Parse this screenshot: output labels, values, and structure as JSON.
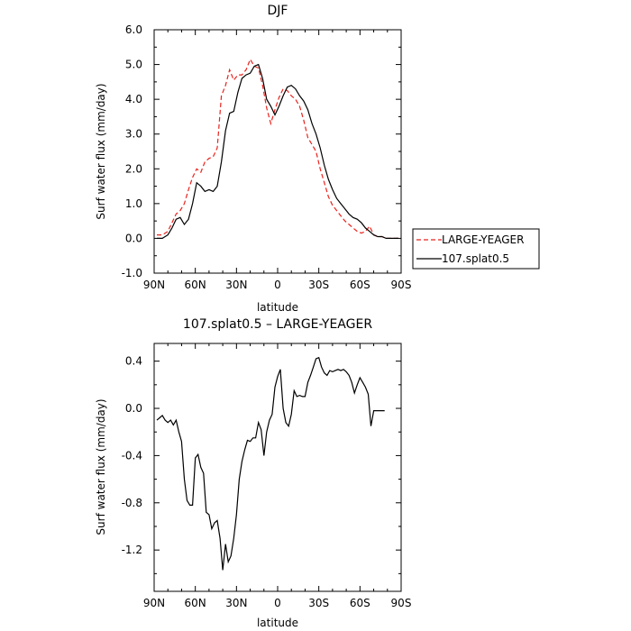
{
  "chart_data": [
    {
      "type": "line",
      "title": "DJF",
      "xlabel": "latitude",
      "ylabel": "Surf water flux (mm/day)",
      "xlim": [
        90,
        -90
      ],
      "ylim": [
        -1.0,
        6.0
      ],
      "x_ticks": [
        90,
        60,
        30,
        0,
        -30,
        -60,
        -90
      ],
      "x_tick_labels": [
        "90N",
        "60N",
        "30N",
        "0",
        "30S",
        "60S",
        "90S"
      ],
      "y_ticks": [
        -1.0,
        0.0,
        1.0,
        2.0,
        3.0,
        4.0,
        5.0,
        6.0
      ],
      "y_tick_labels": [
        "-1.0",
        "0.0",
        "1.0",
        "2.0",
        "3.0",
        "4.0",
        "5.0",
        "6.0"
      ],
      "legend": "right",
      "series": [
        {
          "name": "LARGE-YEAGER",
          "color": "#e8231d",
          "dash": "dashed",
          "x": [
            88,
            84,
            80,
            77,
            74,
            71,
            68,
            65,
            62,
            59,
            56,
            53,
            50,
            47,
            44,
            41,
            38,
            35,
            32,
            29,
            26,
            23,
            20,
            17,
            14,
            11,
            8,
            5,
            2,
            -1,
            -4,
            -7,
            -10,
            -13,
            -16,
            -19,
            -22,
            -25,
            -28,
            -31,
            -34,
            -37,
            -40,
            -43,
            -46,
            -49,
            -52,
            -55,
            -58,
            -61,
            -64,
            -67,
            -70,
            -73,
            -76,
            -79,
            -82,
            -85,
            -88
          ],
          "y": [
            0.1,
            0.1,
            0.2,
            0.45,
            0.7,
            0.8,
            1.0,
            1.4,
            1.75,
            2.0,
            1.9,
            2.2,
            2.3,
            2.35,
            2.6,
            4.1,
            4.4,
            4.85,
            4.55,
            4.7,
            4.7,
            4.85,
            5.15,
            4.95,
            4.9,
            4.4,
            3.75,
            3.3,
            3.7,
            4.05,
            4.3,
            4.25,
            4.1,
            4.0,
            3.8,
            3.4,
            2.9,
            2.7,
            2.5,
            2.0,
            1.6,
            1.2,
            0.95,
            0.8,
            0.65,
            0.5,
            0.4,
            0.3,
            0.2,
            0.15,
            0.2,
            0.35,
            0.1,
            0.05,
            0.05,
            0.0,
            0.0,
            0.0,
            0.0
          ]
        },
        {
          "name": "107.splat0.5",
          "color": "#000000",
          "dash": "solid",
          "x": [
            88,
            84,
            80,
            77,
            74,
            71,
            68,
            65,
            62,
            59,
            56,
            53,
            50,
            47,
            44,
            41,
            38,
            35,
            32,
            29,
            26,
            23,
            20,
            17,
            14,
            11,
            8,
            5,
            2,
            -1,
            -4,
            -7,
            -10,
            -13,
            -16,
            -19,
            -22,
            -25,
            -28,
            -31,
            -34,
            -37,
            -40,
            -43,
            -46,
            -49,
            -52,
            -55,
            -58,
            -61,
            -64,
            -67,
            -70,
            -73,
            -76,
            -79,
            -82,
            -85,
            -88
          ],
          "y": [
            0.0,
            0.0,
            0.1,
            0.3,
            0.55,
            0.6,
            0.4,
            0.55,
            1.0,
            1.6,
            1.5,
            1.35,
            1.4,
            1.35,
            1.5,
            2.2,
            3.1,
            3.6,
            3.65,
            4.2,
            4.6,
            4.7,
            4.75,
            4.95,
            5.0,
            4.6,
            4.0,
            3.8,
            3.55,
            3.8,
            4.1,
            4.35,
            4.4,
            4.3,
            4.1,
            3.95,
            3.7,
            3.3,
            3.0,
            2.6,
            2.1,
            1.7,
            1.4,
            1.15,
            1.0,
            0.85,
            0.7,
            0.6,
            0.55,
            0.45,
            0.3,
            0.2,
            0.1,
            0.05,
            0.05,
            0.0,
            0.0,
            0.0,
            0.0
          ]
        }
      ]
    },
    {
      "type": "line",
      "title": "107.splat0.5 – LARGE-YEAGER",
      "xlabel": "latitude",
      "ylabel": "Surf water flux (mm/day)",
      "xlim": [
        90,
        -90
      ],
      "ylim": [
        -1.55,
        0.55
      ],
      "x_ticks": [
        90,
        60,
        30,
        0,
        -30,
        -60,
        -90
      ],
      "x_tick_labels": [
        "90N",
        "60N",
        "30N",
        "0",
        "30S",
        "60S",
        "90S"
      ],
      "y_ticks": [
        -1.2,
        -0.8,
        -0.4,
        0.0,
        0.4
      ],
      "y_tick_labels": [
        "-1.2",
        "-0.8",
        "-0.4",
        "0.0",
        "0.4"
      ],
      "series": [
        {
          "name": "",
          "color": "#000000",
          "dash": "solid",
          "x": [
            88,
            86,
            84,
            82,
            80,
            78,
            76,
            74,
            72,
            70,
            68,
            66,
            64,
            62,
            60,
            58,
            56,
            54,
            52,
            50,
            48,
            46,
            44,
            42,
            40,
            38,
            36,
            34,
            32,
            30,
            28,
            26,
            24,
            22,
            20,
            18,
            16,
            14,
            12,
            10,
            8,
            6,
            4,
            2,
            0,
            -2,
            -4,
            -6,
            -8,
            -10,
            -12,
            -14,
            -16,
            -18,
            -20,
            -22,
            -24,
            -26,
            -28,
            -30,
            -32,
            -34,
            -36,
            -38,
            -40,
            -42,
            -44,
            -46,
            -48,
            -50,
            -52,
            -54,
            -56,
            -58,
            -60,
            -62,
            -64,
            -66,
            -68,
            -70,
            -72,
            -74,
            -76,
            -78
          ],
          "y": [
            -0.1,
            -0.08,
            -0.06,
            -0.1,
            -0.12,
            -0.1,
            -0.14,
            -0.1,
            -0.2,
            -0.28,
            -0.6,
            -0.78,
            -0.82,
            -0.82,
            -0.42,
            -0.39,
            -0.5,
            -0.55,
            -0.88,
            -0.9,
            -1.02,
            -0.97,
            -0.95,
            -1.1,
            -1.37,
            -1.15,
            -1.3,
            -1.25,
            -1.1,
            -0.9,
            -0.6,
            -0.45,
            -0.35,
            -0.27,
            -0.28,
            -0.25,
            -0.25,
            -0.12,
            -0.18,
            -0.4,
            -0.2,
            -0.1,
            -0.05,
            0.18,
            0.27,
            0.33,
            0.0,
            -0.12,
            -0.15,
            -0.05,
            0.15,
            0.1,
            0.11,
            0.1,
            0.1,
            0.22,
            0.28,
            0.35,
            0.42,
            0.43,
            0.35,
            0.3,
            0.28,
            0.32,
            0.31,
            0.32,
            0.33,
            0.32,
            0.33,
            0.31,
            0.28,
            0.22,
            0.13,
            0.2,
            0.26,
            0.22,
            0.18,
            0.12,
            -0.15,
            -0.02,
            -0.02,
            -0.02,
            -0.02,
            -0.02
          ]
        }
      ]
    }
  ]
}
